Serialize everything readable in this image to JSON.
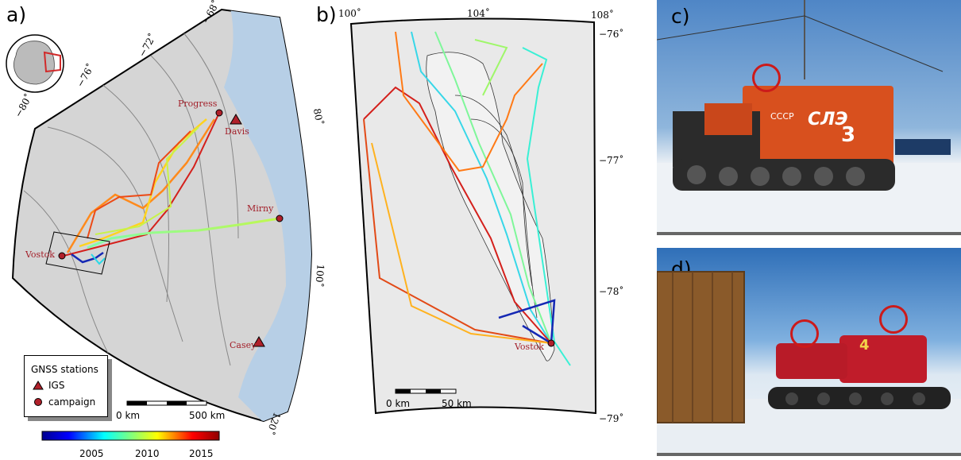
{
  "panels": {
    "a": {
      "label": "a)",
      "lat_ticks": [
        "−68˚",
        "−72˚",
        "−76˚",
        "−80˚"
      ],
      "lon_ticks": [
        "80˚",
        "100˚",
        "120˚"
      ],
      "places": [
        "Progress",
        "Davis",
        "Mirny",
        "Vostok",
        "Casey"
      ],
      "legend": {
        "title": "GNSS stations",
        "items": [
          {
            "symbol": "triangle",
            "label": "IGS",
            "color": "#b0202a"
          },
          {
            "symbol": "circle",
            "label": "campaign",
            "color": "#b0202a"
          }
        ]
      },
      "scalebar": {
        "left": "0 km",
        "right": "500 km"
      },
      "colorbar": {
        "ticks": [
          "2005",
          "2010",
          "2015"
        ],
        "range": [
          2000,
          2018
        ]
      }
    },
    "b": {
      "label": "b)",
      "lon_ticks": [
        "100˚",
        "104˚",
        "108˚"
      ],
      "lat_ticks": [
        "−76˚",
        "−77˚",
        "−78˚",
        "−79˚"
      ],
      "places": [
        "Vostok"
      ],
      "scalebar": {
        "left": "0 km",
        "right": "50 km"
      }
    },
    "c": {
      "label": "c)",
      "vehicle_text": "СЛЭ",
      "vehicle_number": "3",
      "vehicle_small": "СССР"
    },
    "d": {
      "label": "d)",
      "vehicle_number": "4"
    }
  },
  "colors": {
    "ocean": "#b7cfe6",
    "land": "#d7d7d7",
    "marker": "#b0202a",
    "highlight_circle": "#cc1a1a"
  }
}
